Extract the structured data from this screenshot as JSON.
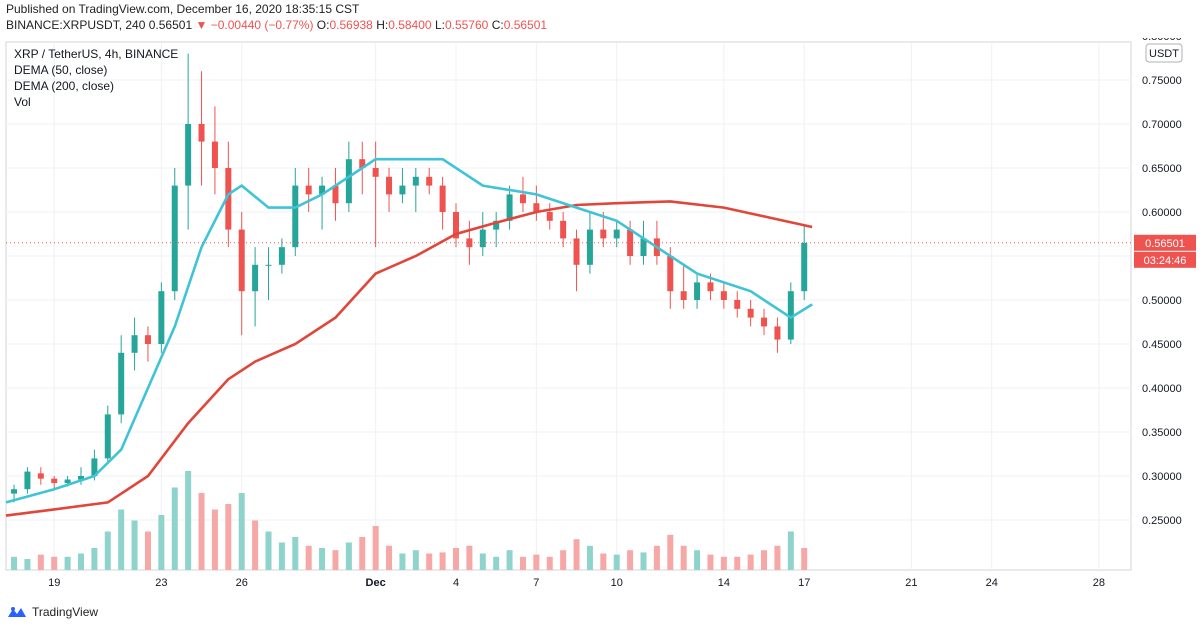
{
  "header": {
    "published": "Published on TradingView.com, December 16, 2020 18:35:15 CST",
    "symbol_line": "BINANCE:XRPUSDT, 240",
    "last": "0.56501",
    "change": "−0.00440 (−0.77%)",
    "o_label": "O:",
    "o_value": "0.56938",
    "h_label": "H:",
    "h_value": "0.58400",
    "l_label": "L:",
    "l_value": "0.55760",
    "c_label": "C:",
    "c_value": "0.56501"
  },
  "legend": {
    "title": "XRP / TetherUS, 4h, BINANCE",
    "dema50": "DEMA (50, close)",
    "dema200": "DEMA (200, close)",
    "vol": "Vol"
  },
  "price_axis": {
    "currency_tag": "USDT",
    "last_price_tag": "0.56501",
    "countdown_tag": "03:24:46"
  },
  "footer": {
    "brand": "TradingView"
  },
  "colors": {
    "up": "#26a69a",
    "down": "#ef5350",
    "dema50": "#3fc3d6",
    "dema200": "#e0463a",
    "vol_up": "#8fd3cd",
    "vol_down": "#f5a8a5"
  },
  "chart_data": {
    "type": "candlestick",
    "ylim": [
      0.2,
      0.8
    ],
    "y_ticks": [
      "0.80000",
      "0.75000",
      "0.70000",
      "0.65000",
      "0.60000",
      "0.55000",
      "0.50000",
      "0.45000",
      "0.40000",
      "0.35000",
      "0.30000",
      "0.25000"
    ],
    "x_ticks": [
      "19",
      "23",
      "26",
      "Dec",
      "4",
      "7",
      "10",
      "14",
      "17",
      "21",
      "24",
      "28"
    ],
    "x_tick_days": [
      19,
      23,
      26,
      31,
      34,
      37,
      40,
      44,
      47,
      51,
      54,
      58
    ],
    "x_range_days": [
      17.2,
      59.2
    ],
    "last_price": 0.56501,
    "candles_daily_ohlc": [
      {
        "day": 17.5,
        "o": 0.28,
        "h": 0.29,
        "l": 0.27,
        "c": 0.285
      },
      {
        "day": 18,
        "o": 0.285,
        "h": 0.31,
        "l": 0.28,
        "c": 0.305
      },
      {
        "day": 18.5,
        "o": 0.303,
        "h": 0.31,
        "l": 0.29,
        "c": 0.297
      },
      {
        "day": 19,
        "o": 0.297,
        "h": 0.3,
        "l": 0.285,
        "c": 0.292
      },
      {
        "day": 19.5,
        "o": 0.292,
        "h": 0.3,
        "l": 0.288,
        "c": 0.296
      },
      {
        "day": 20,
        "o": 0.296,
        "h": 0.31,
        "l": 0.29,
        "c": 0.3
      },
      {
        "day": 20.5,
        "o": 0.3,
        "h": 0.33,
        "l": 0.295,
        "c": 0.32
      },
      {
        "day": 21,
        "o": 0.32,
        "h": 0.38,
        "l": 0.315,
        "c": 0.37
      },
      {
        "day": 21.5,
        "o": 0.37,
        "h": 0.46,
        "l": 0.36,
        "c": 0.44
      },
      {
        "day": 22,
        "o": 0.44,
        "h": 0.48,
        "l": 0.42,
        "c": 0.46
      },
      {
        "day": 22.5,
        "o": 0.46,
        "h": 0.47,
        "l": 0.43,
        "c": 0.45
      },
      {
        "day": 23,
        "o": 0.45,
        "h": 0.52,
        "l": 0.44,
        "c": 0.51
      },
      {
        "day": 23.5,
        "o": 0.51,
        "h": 0.65,
        "l": 0.5,
        "c": 0.63
      },
      {
        "day": 24,
        "o": 0.63,
        "h": 0.78,
        "l": 0.58,
        "c": 0.7
      },
      {
        "day": 24.5,
        "o": 0.7,
        "h": 0.76,
        "l": 0.63,
        "c": 0.68
      },
      {
        "day": 25,
        "o": 0.68,
        "h": 0.72,
        "l": 0.62,
        "c": 0.65
      },
      {
        "day": 25.5,
        "o": 0.65,
        "h": 0.68,
        "l": 0.56,
        "c": 0.58
      },
      {
        "day": 26,
        "o": 0.58,
        "h": 0.6,
        "l": 0.46,
        "c": 0.51
      },
      {
        "day": 26.5,
        "o": 0.51,
        "h": 0.56,
        "l": 0.47,
        "c": 0.54
      },
      {
        "day": 27,
        "o": 0.54,
        "h": 0.56,
        "l": 0.5,
        "c": 0.54
      },
      {
        "day": 27.5,
        "o": 0.54,
        "h": 0.57,
        "l": 0.53,
        "c": 0.56
      },
      {
        "day": 28,
        "o": 0.56,
        "h": 0.65,
        "l": 0.55,
        "c": 0.63
      },
      {
        "day": 28.5,
        "o": 0.63,
        "h": 0.65,
        "l": 0.6,
        "c": 0.62
      },
      {
        "day": 29,
        "o": 0.62,
        "h": 0.64,
        "l": 0.58,
        "c": 0.63
      },
      {
        "day": 29.5,
        "o": 0.63,
        "h": 0.65,
        "l": 0.59,
        "c": 0.61
      },
      {
        "day": 30,
        "o": 0.61,
        "h": 0.68,
        "l": 0.6,
        "c": 0.66
      },
      {
        "day": 30.5,
        "o": 0.66,
        "h": 0.68,
        "l": 0.62,
        "c": 0.65
      },
      {
        "day": 31,
        "o": 0.65,
        "h": 0.68,
        "l": 0.56,
        "c": 0.64
      },
      {
        "day": 31.5,
        "o": 0.64,
        "h": 0.65,
        "l": 0.6,
        "c": 0.62
      },
      {
        "day": 32,
        "o": 0.62,
        "h": 0.65,
        "l": 0.61,
        "c": 0.63
      },
      {
        "day": 32.5,
        "o": 0.63,
        "h": 0.65,
        "l": 0.6,
        "c": 0.64
      },
      {
        "day": 33,
        "o": 0.64,
        "h": 0.65,
        "l": 0.62,
        "c": 0.63
      },
      {
        "day": 33.5,
        "o": 0.63,
        "h": 0.64,
        "l": 0.58,
        "c": 0.6
      },
      {
        "day": 34,
        "o": 0.6,
        "h": 0.61,
        "l": 0.56,
        "c": 0.57
      },
      {
        "day": 34.5,
        "o": 0.57,
        "h": 0.59,
        "l": 0.54,
        "c": 0.56
      },
      {
        "day": 35,
        "o": 0.56,
        "h": 0.6,
        "l": 0.55,
        "c": 0.58
      },
      {
        "day": 35.5,
        "o": 0.58,
        "h": 0.6,
        "l": 0.56,
        "c": 0.59
      },
      {
        "day": 36,
        "o": 0.59,
        "h": 0.63,
        "l": 0.58,
        "c": 0.62
      },
      {
        "day": 36.5,
        "o": 0.62,
        "h": 0.64,
        "l": 0.6,
        "c": 0.61
      },
      {
        "day": 37,
        "o": 0.61,
        "h": 0.63,
        "l": 0.59,
        "c": 0.6
      },
      {
        "day": 37.5,
        "o": 0.6,
        "h": 0.61,
        "l": 0.58,
        "c": 0.59
      },
      {
        "day": 38,
        "o": 0.59,
        "h": 0.6,
        "l": 0.56,
        "c": 0.57
      },
      {
        "day": 38.5,
        "o": 0.57,
        "h": 0.58,
        "l": 0.51,
        "c": 0.54
      },
      {
        "day": 39,
        "o": 0.54,
        "h": 0.6,
        "l": 0.53,
        "c": 0.58
      },
      {
        "day": 39.5,
        "o": 0.58,
        "h": 0.6,
        "l": 0.56,
        "c": 0.57
      },
      {
        "day": 40,
        "o": 0.57,
        "h": 0.59,
        "l": 0.56,
        "c": 0.58
      },
      {
        "day": 40.5,
        "o": 0.58,
        "h": 0.59,
        "l": 0.54,
        "c": 0.55
      },
      {
        "day": 41,
        "o": 0.55,
        "h": 0.59,
        "l": 0.54,
        "c": 0.57
      },
      {
        "day": 41.5,
        "o": 0.57,
        "h": 0.59,
        "l": 0.54,
        "c": 0.55
      },
      {
        "day": 42,
        "o": 0.55,
        "h": 0.56,
        "l": 0.49,
        "c": 0.51
      },
      {
        "day": 42.5,
        "o": 0.51,
        "h": 0.54,
        "l": 0.49,
        "c": 0.5
      },
      {
        "day": 43,
        "o": 0.5,
        "h": 0.53,
        "l": 0.49,
        "c": 0.52
      },
      {
        "day": 43.5,
        "o": 0.52,
        "h": 0.53,
        "l": 0.5,
        "c": 0.51
      },
      {
        "day": 44,
        "o": 0.51,
        "h": 0.52,
        "l": 0.49,
        "c": 0.5
      },
      {
        "day": 44.5,
        "o": 0.5,
        "h": 0.51,
        "l": 0.48,
        "c": 0.49
      },
      {
        "day": 45,
        "o": 0.49,
        "h": 0.5,
        "l": 0.47,
        "c": 0.48
      },
      {
        "day": 45.5,
        "o": 0.48,
        "h": 0.49,
        "l": 0.46,
        "c": 0.47
      },
      {
        "day": 46,
        "o": 0.47,
        "h": 0.48,
        "l": 0.44,
        "c": 0.455
      },
      {
        "day": 46.5,
        "o": 0.455,
        "h": 0.52,
        "l": 0.45,
        "c": 0.51
      },
      {
        "day": 47,
        "o": 0.51,
        "h": 0.584,
        "l": 0.5,
        "c": 0.565
      }
    ],
    "dema50": [
      {
        "day": 17.2,
        "v": 0.27
      },
      {
        "day": 19,
        "v": 0.285
      },
      {
        "day": 20.5,
        "v": 0.3
      },
      {
        "day": 21.5,
        "v": 0.33
      },
      {
        "day": 22.5,
        "v": 0.4
      },
      {
        "day": 23.5,
        "v": 0.47
      },
      {
        "day": 24.5,
        "v": 0.56
      },
      {
        "day": 25.5,
        "v": 0.62
      },
      {
        "day": 26,
        "v": 0.63
      },
      {
        "day": 27,
        "v": 0.605
      },
      {
        "day": 28,
        "v": 0.605
      },
      {
        "day": 29,
        "v": 0.62
      },
      {
        "day": 30.5,
        "v": 0.65
      },
      {
        "day": 31,
        "v": 0.66
      },
      {
        "day": 33.5,
        "v": 0.66
      },
      {
        "day": 35,
        "v": 0.63
      },
      {
        "day": 37,
        "v": 0.62
      },
      {
        "day": 38.5,
        "v": 0.605
      },
      {
        "day": 40,
        "v": 0.59
      },
      {
        "day": 41.5,
        "v": 0.56
      },
      {
        "day": 43,
        "v": 0.53
      },
      {
        "day": 45,
        "v": 0.51
      },
      {
        "day": 46.5,
        "v": 0.48
      },
      {
        "day": 47.3,
        "v": 0.495
      }
    ],
    "dema200": [
      {
        "day": 17.2,
        "v": 0.255
      },
      {
        "day": 19,
        "v": 0.262
      },
      {
        "day": 21,
        "v": 0.27
      },
      {
        "day": 22.5,
        "v": 0.3
      },
      {
        "day": 24,
        "v": 0.36
      },
      {
        "day": 25.5,
        "v": 0.41
      },
      {
        "day": 26.5,
        "v": 0.43
      },
      {
        "day": 28,
        "v": 0.45
      },
      {
        "day": 29.5,
        "v": 0.48
      },
      {
        "day": 31,
        "v": 0.53
      },
      {
        "day": 32.5,
        "v": 0.55
      },
      {
        "day": 34,
        "v": 0.575
      },
      {
        "day": 35.5,
        "v": 0.588
      },
      {
        "day": 37,
        "v": 0.6
      },
      {
        "day": 38.5,
        "v": 0.608
      },
      {
        "day": 40,
        "v": 0.61
      },
      {
        "day": 42,
        "v": 0.612
      },
      {
        "day": 44,
        "v": 0.605
      },
      {
        "day": 45.5,
        "v": 0.595
      },
      {
        "day": 47.3,
        "v": 0.583
      }
    ],
    "volume_relative": [
      {
        "day": 17.5,
        "v": 0.12,
        "up": true
      },
      {
        "day": 18,
        "v": 0.1,
        "up": true
      },
      {
        "day": 18.5,
        "v": 0.14,
        "up": false
      },
      {
        "day": 19,
        "v": 0.12,
        "up": false
      },
      {
        "day": 19.5,
        "v": 0.12,
        "up": true
      },
      {
        "day": 20,
        "v": 0.15,
        "up": true
      },
      {
        "day": 20.5,
        "v": 0.2,
        "up": true
      },
      {
        "day": 21,
        "v": 0.35,
        "up": true
      },
      {
        "day": 21.5,
        "v": 0.55,
        "up": true
      },
      {
        "day": 22,
        "v": 0.45,
        "up": true
      },
      {
        "day": 22.5,
        "v": 0.35,
        "up": false
      },
      {
        "day": 23,
        "v": 0.5,
        "up": true
      },
      {
        "day": 23.5,
        "v": 0.75,
        "up": true
      },
      {
        "day": 24,
        "v": 0.9,
        "up": true
      },
      {
        "day": 24.5,
        "v": 0.7,
        "up": false
      },
      {
        "day": 25,
        "v": 0.55,
        "up": false
      },
      {
        "day": 25.5,
        "v": 0.6,
        "up": false
      },
      {
        "day": 26,
        "v": 0.7,
        "up": true
      },
      {
        "day": 26.5,
        "v": 0.45,
        "up": false
      },
      {
        "day": 27,
        "v": 0.35,
        "up": true
      },
      {
        "day": 27.5,
        "v": 0.25,
        "up": true
      },
      {
        "day": 28,
        "v": 0.3,
        "up": true
      },
      {
        "day": 28.5,
        "v": 0.22,
        "up": false
      },
      {
        "day": 29,
        "v": 0.2,
        "up": true
      },
      {
        "day": 29.5,
        "v": 0.18,
        "up": false
      },
      {
        "day": 30,
        "v": 0.25,
        "up": true
      },
      {
        "day": 30.5,
        "v": 0.3,
        "up": false
      },
      {
        "day": 31,
        "v": 0.4,
        "up": false
      },
      {
        "day": 31.5,
        "v": 0.22,
        "up": false
      },
      {
        "day": 32,
        "v": 0.15,
        "up": true
      },
      {
        "day": 32.5,
        "v": 0.18,
        "up": true
      },
      {
        "day": 33,
        "v": 0.15,
        "up": false
      },
      {
        "day": 33.5,
        "v": 0.16,
        "up": false
      },
      {
        "day": 34,
        "v": 0.2,
        "up": false
      },
      {
        "day": 34.5,
        "v": 0.22,
        "up": false
      },
      {
        "day": 35,
        "v": 0.15,
        "up": true
      },
      {
        "day": 35.5,
        "v": 0.12,
        "up": true
      },
      {
        "day": 36,
        "v": 0.18,
        "up": true
      },
      {
        "day": 36.5,
        "v": 0.12,
        "up": false
      },
      {
        "day": 37,
        "v": 0.14,
        "up": false
      },
      {
        "day": 37.5,
        "v": 0.12,
        "up": false
      },
      {
        "day": 38,
        "v": 0.18,
        "up": false
      },
      {
        "day": 38.5,
        "v": 0.28,
        "up": false
      },
      {
        "day": 39,
        "v": 0.22,
        "up": true
      },
      {
        "day": 39.5,
        "v": 0.15,
        "up": false
      },
      {
        "day": 40,
        "v": 0.14,
        "up": true
      },
      {
        "day": 40.5,
        "v": 0.18,
        "up": false
      },
      {
        "day": 41,
        "v": 0.16,
        "up": true
      },
      {
        "day": 41.5,
        "v": 0.22,
        "up": false
      },
      {
        "day": 42,
        "v": 0.32,
        "up": false
      },
      {
        "day": 42.5,
        "v": 0.22,
        "up": false
      },
      {
        "day": 43,
        "v": 0.18,
        "up": true
      },
      {
        "day": 43.5,
        "v": 0.14,
        "up": false
      },
      {
        "day": 44,
        "v": 0.12,
        "up": false
      },
      {
        "day": 44.5,
        "v": 0.12,
        "up": false
      },
      {
        "day": 45,
        "v": 0.14,
        "up": false
      },
      {
        "day": 45.5,
        "v": 0.18,
        "up": false
      },
      {
        "day": 46,
        "v": 0.22,
        "up": false
      },
      {
        "day": 46.5,
        "v": 0.35,
        "up": true
      },
      {
        "day": 47,
        "v": 0.2,
        "up": false
      }
    ]
  }
}
